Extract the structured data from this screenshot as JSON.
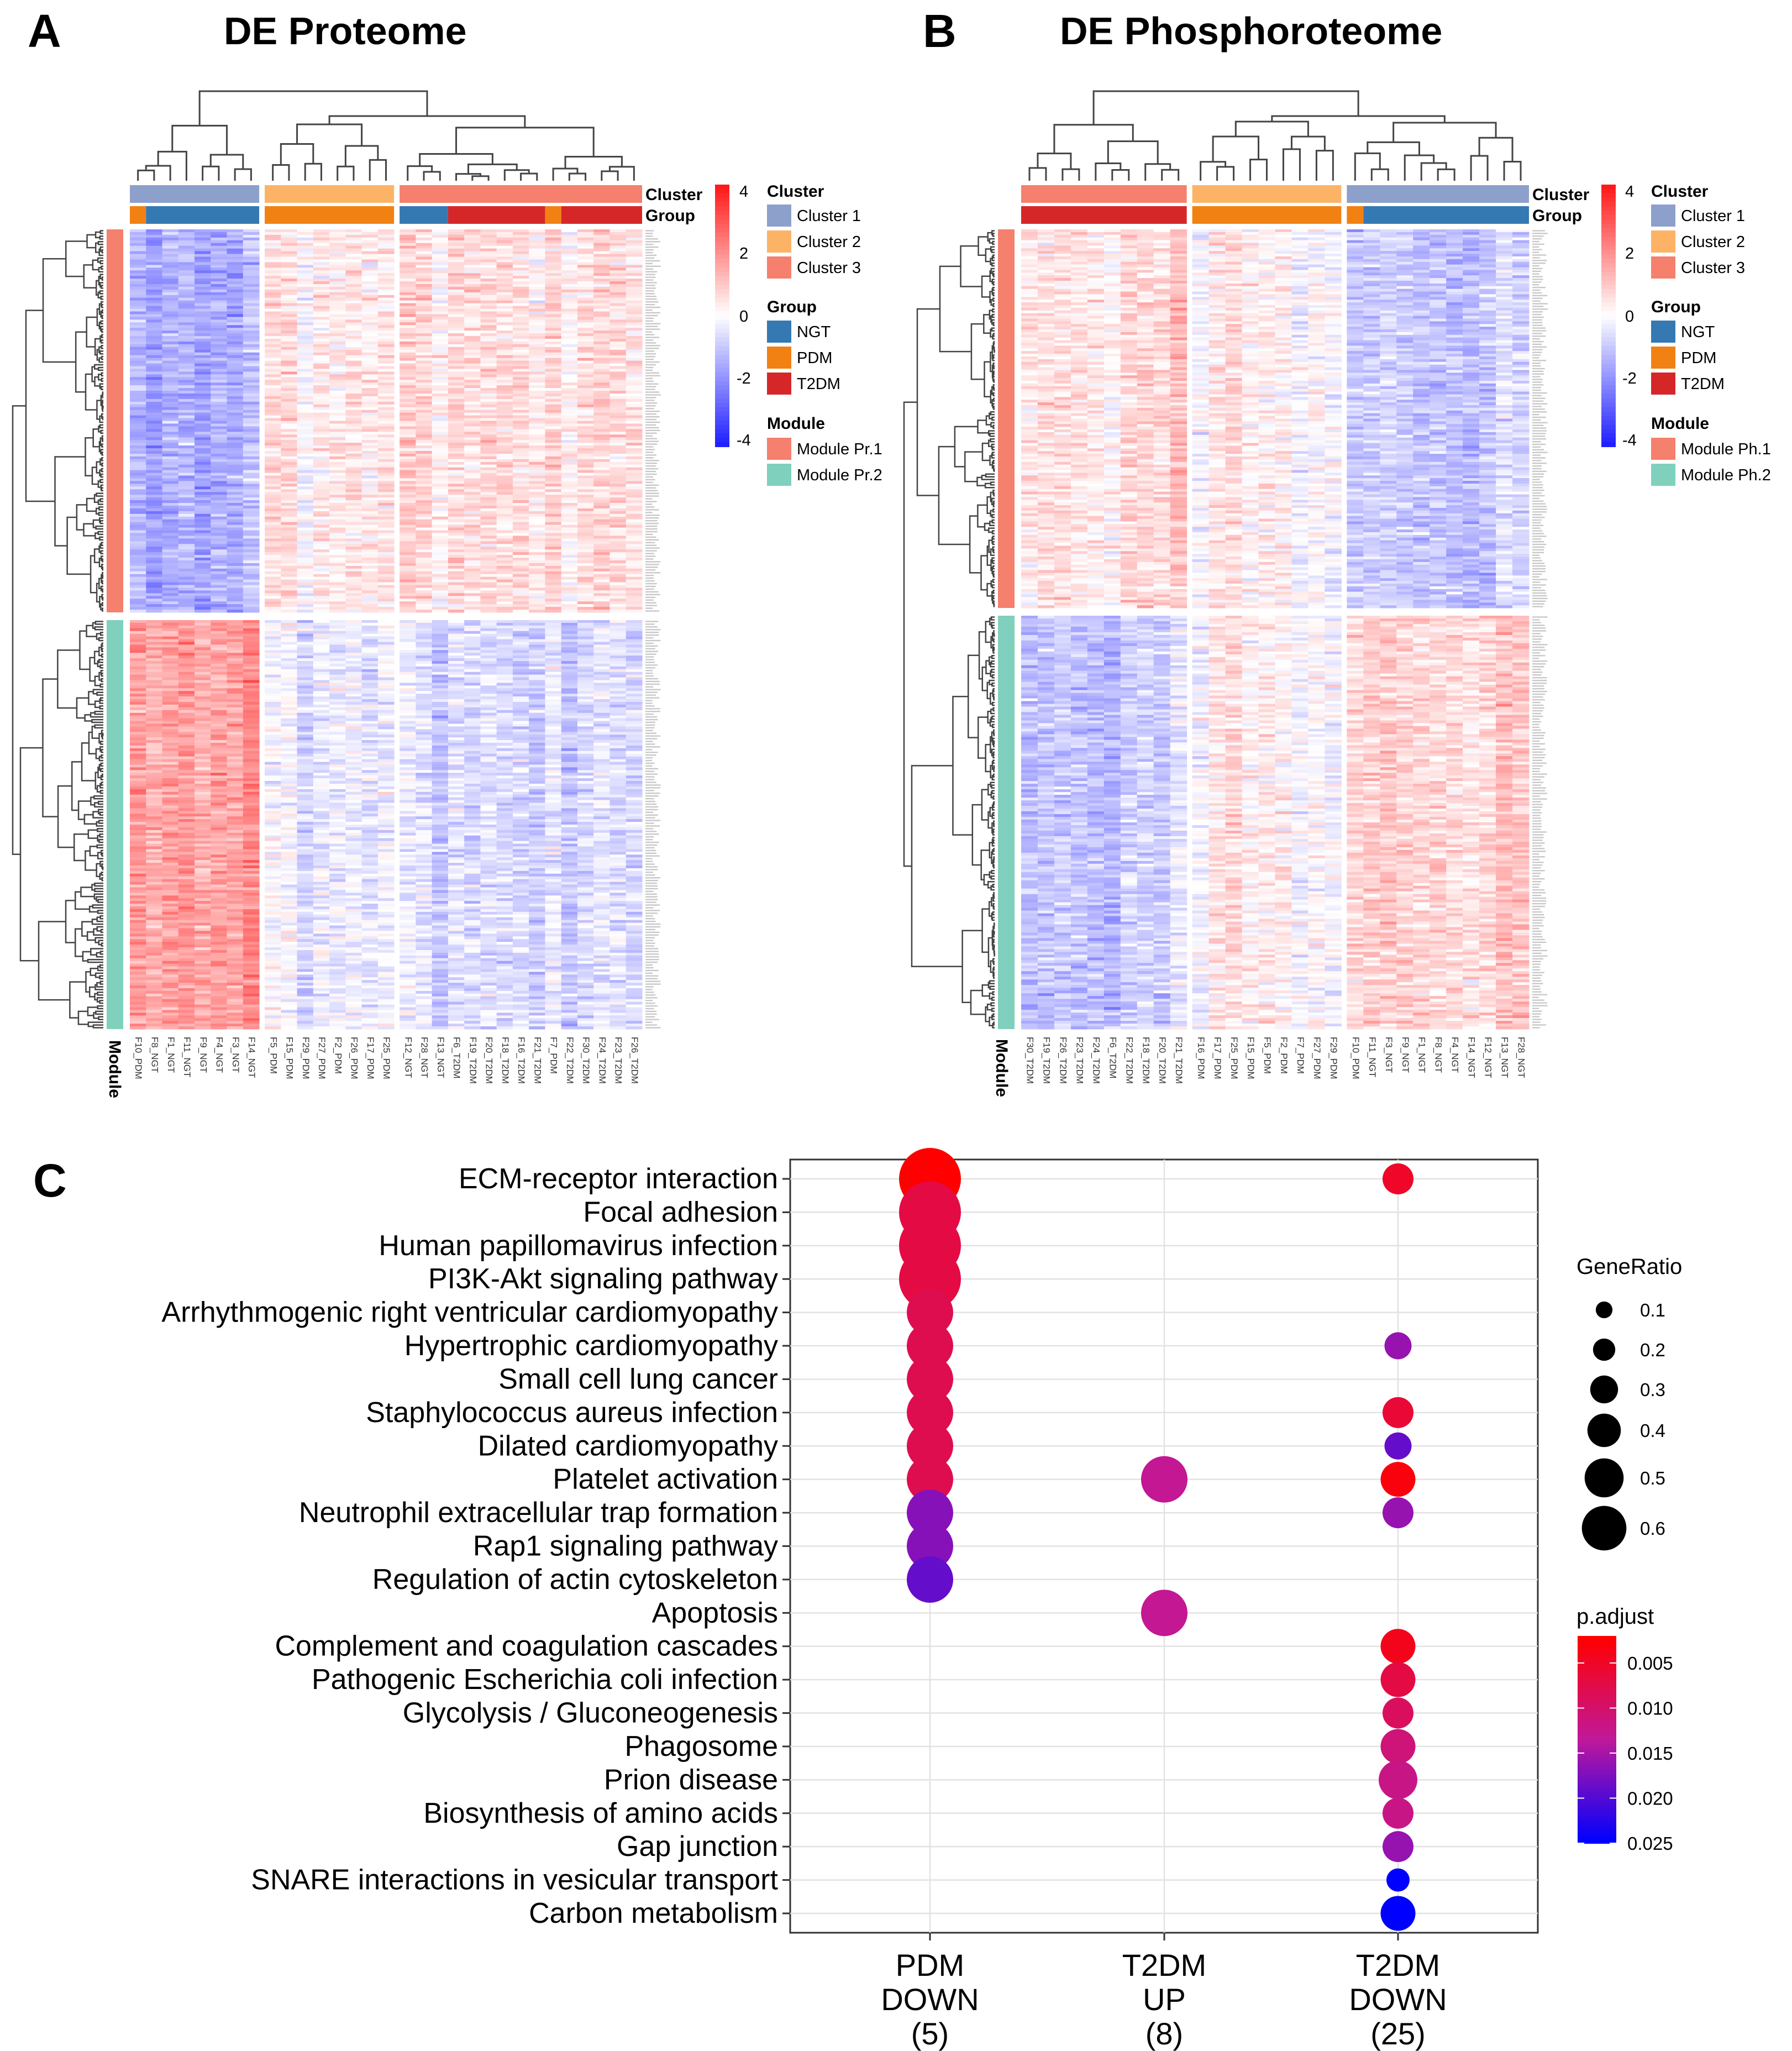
{
  "panelA": {
    "letter": "A",
    "title": "DE Proteome",
    "cluster_label": "Cluster",
    "group_label": "Group",
    "module_axis_label": "Module",
    "samples": [
      "F10_PDM",
      "F8_NGT",
      "F1_NGT",
      "F11_NGT",
      "F9_NGT",
      "F4_NGT",
      "F3_NGT",
      "F14_NGT",
      "F5_PDM",
      "F15_PDM",
      "F29_PDM",
      "F27_PDM",
      "F2_PDM",
      "F26_PDM",
      "F17_PDM",
      "F25_PDM",
      "F12_NGT",
      "F28_NGT",
      "F13_NGT",
      "F6_T2DM",
      "F19_T2DM",
      "F20_T2DM",
      "F18_T2DM",
      "F16_T2DM",
      "F21_T2DM",
      "F7_PDM",
      "F22_T2DM",
      "F30_T2DM",
      "F24_T2DM",
      "F23_T2DM",
      "F26_T2DM"
    ],
    "cluster_sizes": [
      8,
      8,
      15
    ],
    "group_sizes": [
      [
        1,
        7
      ],
      [
        8
      ],
      [
        3,
        6,
        1,
        5
      ]
    ],
    "group_codes": [
      [
        "PDM",
        "NGT"
      ],
      [
        "PDM"
      ],
      [
        "NGT",
        "T2DM",
        "PDM",
        "T2DM"
      ]
    ],
    "legend": {
      "scale_ticks": [
        "4",
        "2",
        "0",
        "-2",
        "-4"
      ],
      "cluster_title": "Cluster",
      "clusters": [
        "Cluster 1",
        "Cluster 2",
        "Cluster 3"
      ],
      "group_title": "Group",
      "groups": [
        "NGT",
        "PDM",
        "T2DM"
      ],
      "module_title": "Module",
      "modules": [
        "Module Pr.1",
        "Module Pr.2"
      ]
    }
  },
  "panelB": {
    "letter": "B",
    "title": "DE Phosphoroteome",
    "cluster_label": "Cluster",
    "group_label": "Group",
    "module_axis_label": "Module",
    "samples": [
      "F30_T2DM",
      "F19_T2DM",
      "F26_T2DM",
      "F23_T2DM",
      "F24_T2DM",
      "F6_T2DM",
      "F22_T2DM",
      "F18_T2DM",
      "F20_T2DM",
      "F21_T2DM",
      "F16_PDM",
      "F17_PDM",
      "F25_PDM",
      "F15_PDM",
      "F5_PDM",
      "F2_PDM",
      "F7_PDM",
      "F27_PDM",
      "F29_PDM",
      "F10_PDM",
      "F11_NGT",
      "F3_NGT",
      "F9_NGT",
      "F1_NGT",
      "F8_NGT",
      "F4_NGT",
      "F14_NGT",
      "F12_NGT",
      "F13_NGT",
      "F28_NGT"
    ],
    "cluster_sizes": [
      10,
      9,
      11
    ],
    "group_sizes": [
      [
        10
      ],
      [
        9
      ],
      [
        1,
        10
      ]
    ],
    "group_codes": [
      [
        "T2DM"
      ],
      [
        "PDM"
      ],
      [
        "PDM",
        "NGT"
      ]
    ],
    "legend": {
      "scale_ticks": [
        "4",
        "2",
        "0",
        "-2",
        "-4"
      ],
      "cluster_title": "Cluster",
      "clusters": [
        "Cluster 1",
        "Cluster 2",
        "Cluster 3"
      ],
      "group_title": "Group",
      "groups": [
        "NGT",
        "PDM",
        "T2DM"
      ],
      "module_title": "Module",
      "modules": [
        "Module Ph.1",
        "Module Ph.2"
      ]
    }
  },
  "colors": {
    "cluster": [
      "#8da0cb",
      "#fdb366",
      "#f4806d"
    ],
    "group": {
      "NGT": "#3579b2",
      "PDM": "#f28113",
      "T2DM": "#d62728"
    },
    "module": [
      "#f4806d",
      "#7fd0bd"
    ],
    "heat_low": "#2020ff",
    "heat_high": "#ff1a1a"
  },
  "chart_data": {
    "type": "scatter",
    "panel_letter": "C",
    "categories": [
      "PDM\nDOWN\n(5)",
      "T2DM\nUP\n(8)",
      "T2DM\nDOWN\n(25)"
    ],
    "pathways": [
      "ECM-receptor interaction",
      "Focal adhesion",
      "Human papillomavirus infection",
      "PI3K-Akt signaling pathway",
      "Arrhythmogenic right ventricular cardiomyopathy",
      "Hypertrophic cardiomyopathy",
      "Small cell lung cancer",
      "Staphylococcus aureus infection",
      "Dilated cardiomyopathy",
      "Platelet activation",
      "Neutrophil extracellular trap formation",
      "Rap1 signaling pathway",
      "Regulation of actin cytoskeleton",
      "Apoptosis",
      "Complement and coagulation cascades",
      "Pathogenic Escherichia coli infection",
      "Glycolysis / Gluconeogenesis",
      "Phagosome",
      "Prion disease",
      "Biosynthesis of amino acids",
      "Gap junction",
      "SNARE interactions in vesicular transport",
      "Carbon metabolism"
    ],
    "points": [
      {
        "pathway": "ECM-receptor interaction",
        "category": 0,
        "gene_ratio": 0.6,
        "p_adjust": 0.002
      },
      {
        "pathway": "Focal adhesion",
        "category": 0,
        "gene_ratio": 0.6,
        "p_adjust": 0.007
      },
      {
        "pathway": "Human papillomavirus infection",
        "category": 0,
        "gene_ratio": 0.6,
        "p_adjust": 0.007
      },
      {
        "pathway": "PI3K-Akt signaling pathway",
        "category": 0,
        "gene_ratio": 0.6,
        "p_adjust": 0.007
      },
      {
        "pathway": "Arrhythmogenic right ventricular cardiomyopathy",
        "category": 0,
        "gene_ratio": 0.4,
        "p_adjust": 0.008
      },
      {
        "pathway": "Hypertrophic cardiomyopathy",
        "category": 0,
        "gene_ratio": 0.4,
        "p_adjust": 0.008
      },
      {
        "pathway": "Small cell lung cancer",
        "category": 0,
        "gene_ratio": 0.4,
        "p_adjust": 0.008
      },
      {
        "pathway": "Staphylococcus aureus infection",
        "category": 0,
        "gene_ratio": 0.4,
        "p_adjust": 0.008
      },
      {
        "pathway": "Dilated cardiomyopathy",
        "category": 0,
        "gene_ratio": 0.4,
        "p_adjust": 0.008
      },
      {
        "pathway": "Platelet activation",
        "category": 0,
        "gene_ratio": 0.4,
        "p_adjust": 0.008
      },
      {
        "pathway": "Neutrophil extracellular trap formation",
        "category": 0,
        "gene_ratio": 0.4,
        "p_adjust": 0.017
      },
      {
        "pathway": "Rap1 signaling pathway",
        "category": 0,
        "gene_ratio": 0.4,
        "p_adjust": 0.017
      },
      {
        "pathway": "Regulation of actin cytoskeleton",
        "category": 0,
        "gene_ratio": 0.4,
        "p_adjust": 0.019
      },
      {
        "pathway": "Platelet activation",
        "category": 1,
        "gene_ratio": 0.4,
        "p_adjust": 0.013
      },
      {
        "pathway": "Apoptosis",
        "category": 1,
        "gene_ratio": 0.4,
        "p_adjust": 0.013
      },
      {
        "pathway": "ECM-receptor interaction",
        "category": 2,
        "gene_ratio": 0.2,
        "p_adjust": 0.005
      },
      {
        "pathway": "Hypertrophic cardiomyopathy",
        "category": 2,
        "gene_ratio": 0.15,
        "p_adjust": 0.016
      },
      {
        "pathway": "Staphylococcus aureus infection",
        "category": 2,
        "gene_ratio": 0.2,
        "p_adjust": 0.006
      },
      {
        "pathway": "Dilated cardiomyopathy",
        "category": 2,
        "gene_ratio": 0.15,
        "p_adjust": 0.019
      },
      {
        "pathway": "Platelet activation",
        "category": 2,
        "gene_ratio": 0.25,
        "p_adjust": 0.003
      },
      {
        "pathway": "Neutrophil extracellular trap formation",
        "category": 2,
        "gene_ratio": 0.2,
        "p_adjust": 0.016
      },
      {
        "pathway": "Complement and coagulation cascades",
        "category": 2,
        "gene_ratio": 0.25,
        "p_adjust": 0.004
      },
      {
        "pathway": "Pathogenic Escherichia coli infection",
        "category": 2,
        "gene_ratio": 0.25,
        "p_adjust": 0.007
      },
      {
        "pathway": "Glycolysis / Gluconeogenesis",
        "category": 2,
        "gene_ratio": 0.2,
        "p_adjust": 0.009
      },
      {
        "pathway": "Phagosome",
        "category": 2,
        "gene_ratio": 0.25,
        "p_adjust": 0.011
      },
      {
        "pathway": "Prion disease",
        "category": 2,
        "gene_ratio": 0.3,
        "p_adjust": 0.012
      },
      {
        "pathway": "Biosynthesis of amino acids",
        "category": 2,
        "gene_ratio": 0.2,
        "p_adjust": 0.012
      },
      {
        "pathway": "Gap junction",
        "category": 2,
        "gene_ratio": 0.2,
        "p_adjust": 0.016
      },
      {
        "pathway": "SNARE interactions in vesicular transport",
        "category": 2,
        "gene_ratio": 0.1,
        "p_adjust": 0.025
      },
      {
        "pathway": "Carbon metabolism",
        "category": 2,
        "gene_ratio": 0.25,
        "p_adjust": 0.025
      }
    ],
    "size_legend": {
      "title": "GeneRatio",
      "values": [
        0.1,
        0.2,
        0.3,
        0.4,
        0.5,
        0.6
      ],
      "labels": [
        "0.1",
        "0.2",
        "0.3",
        "0.4",
        "0.5",
        "0.6"
      ]
    },
    "color_legend": {
      "title": "p.adjust",
      "values": [
        0.005,
        0.01,
        0.015,
        0.02,
        0.025
      ],
      "labels": [
        "0.005",
        "0.010",
        "0.015",
        "0.020",
        "0.025"
      ],
      "low_color": "#ff0000",
      "high_color": "#0000ff"
    },
    "grid": true,
    "legend_position": "right"
  }
}
